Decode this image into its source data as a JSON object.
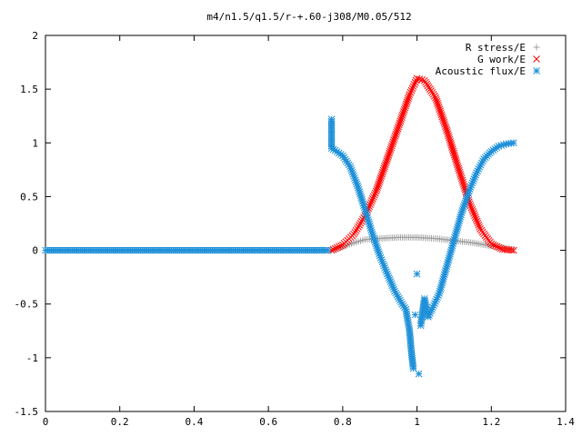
{
  "chart_data": {
    "type": "scatter",
    "title": "m4/n1.5/q1.5/r-+.60-j308/M0.05/512",
    "xlabel": "",
    "ylabel": "",
    "xlim": [
      0,
      1.4
    ],
    "ylim": [
      -1.5,
      2
    ],
    "x_ticks": [
      "0",
      "0.2",
      "0.4",
      "0.6",
      "0.8",
      "1",
      "1.2",
      "1.4"
    ],
    "y_ticks": [
      "2",
      "1.5",
      "1",
      "0.5",
      "0",
      "-0.5",
      "-1",
      "-1.5"
    ],
    "grid": false,
    "legend_position": "top-right",
    "series": [
      {
        "name": "R stress/E",
        "marker": "plus",
        "color": "#a0a0a0",
        "x": [
          0.77,
          0.8,
          0.83,
          0.86,
          0.9,
          0.95,
          1.0,
          1.05,
          1.1,
          1.15,
          1.2,
          1.24,
          1.26
        ],
        "y": [
          0.0,
          0.03,
          0.07,
          0.1,
          0.11,
          0.12,
          0.12,
          0.11,
          0.09,
          0.07,
          0.04,
          0.02,
          0.01
        ]
      },
      {
        "name": "G work/E",
        "marker": "cross",
        "color": "#ff0000",
        "x": [
          0.77,
          0.8,
          0.83,
          0.86,
          0.89,
          0.92,
          0.95,
          0.98,
          1.0,
          1.02,
          1.05,
          1.08,
          1.11,
          1.14,
          1.17,
          1.2,
          1.23,
          1.26
        ],
        "y": [
          0.0,
          0.05,
          0.15,
          0.32,
          0.55,
          0.85,
          1.15,
          1.45,
          1.6,
          1.58,
          1.42,
          1.12,
          0.78,
          0.45,
          0.2,
          0.06,
          0.01,
          0.0
        ]
      },
      {
        "name": "Acoustic flux/E",
        "marker": "star",
        "color": "#1e90d8",
        "x": [
          0.0,
          0.1,
          0.2,
          0.3,
          0.4,
          0.5,
          0.6,
          0.7,
          0.76,
          0.77,
          0.77,
          0.78,
          0.8,
          0.82,
          0.84,
          0.86,
          0.88,
          0.9,
          0.92,
          0.94,
          0.96,
          0.97,
          0.98,
          0.985,
          0.99,
          0.995,
          1.0,
          1.005,
          1.01,
          1.02,
          1.03,
          1.04,
          1.06,
          1.08,
          1.1,
          1.12,
          1.14,
          1.16,
          1.18,
          1.2,
          1.22,
          1.24,
          1.26
        ],
        "y": [
          0.0,
          0.0,
          0.0,
          0.0,
          0.0,
          0.0,
          0.0,
          0.0,
          0.0,
          1.22,
          0.95,
          0.93,
          0.88,
          0.78,
          0.6,
          0.38,
          0.15,
          -0.05,
          -0.22,
          -0.38,
          -0.5,
          -0.55,
          -0.75,
          -0.95,
          -1.1,
          -0.6,
          -0.22,
          -1.15,
          -0.7,
          -0.45,
          -0.62,
          -0.55,
          -0.4,
          -0.15,
          0.1,
          0.35,
          0.55,
          0.72,
          0.85,
          0.92,
          0.97,
          0.99,
          1.0
        ]
      }
    ]
  }
}
